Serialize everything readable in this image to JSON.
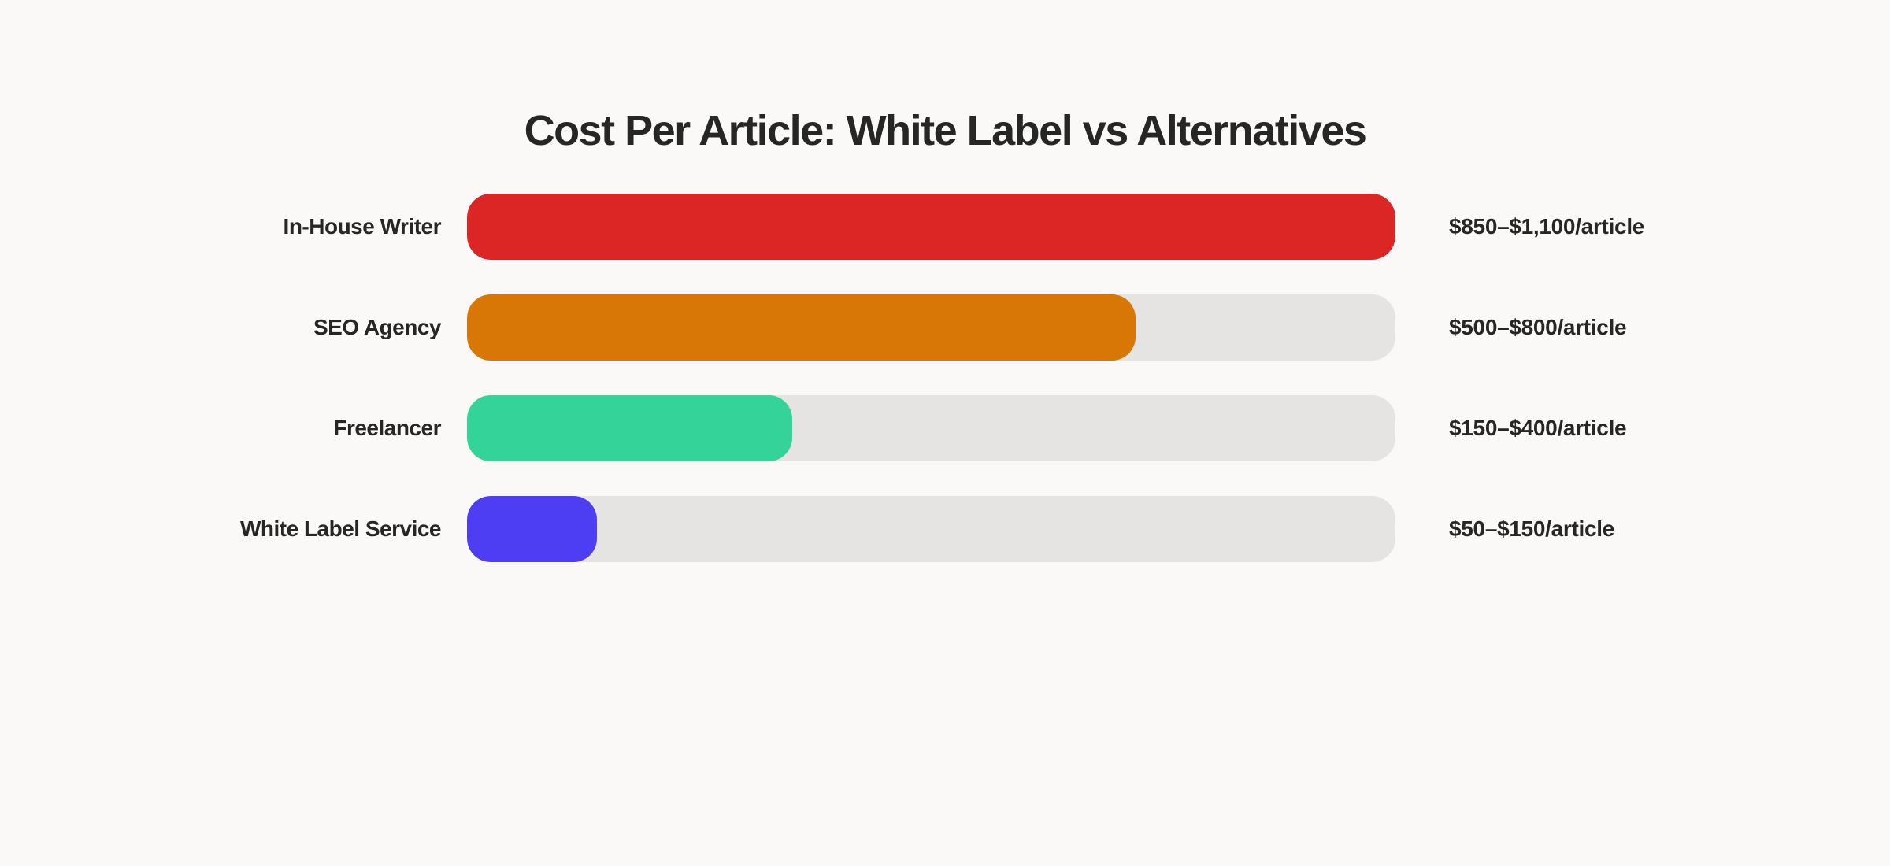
{
  "page": {
    "background_color": "#faf9f7",
    "text_color": "#262624",
    "track_color": "#e5e4e2"
  },
  "title": "Cost Per Article: White Label vs Alternatives",
  "chart_data": {
    "type": "bar",
    "orientation": "horizontal",
    "title": "Cost Per Article: White Label vs Alternatives",
    "xlabel": "",
    "ylabel": "",
    "grid": false,
    "legend": false,
    "track_color": "#e5e4e2",
    "categories": [
      "In-House Writer",
      "SEO Agency",
      "Freelancer",
      "White Label Service"
    ],
    "rows": [
      {
        "label": "In-House Writer",
        "value_label": "$850–$1,100/article",
        "min_cost": 850,
        "max_cost": 1100,
        "bar_percent": 100,
        "color": "#dc2626"
      },
      {
        "label": "SEO Agency",
        "value_label": "$500–$800/article",
        "min_cost": 500,
        "max_cost": 800,
        "bar_percent": 72,
        "color": "#d97706"
      },
      {
        "label": "Freelancer",
        "value_label": "$150–$400/article",
        "min_cost": 150,
        "max_cost": 400,
        "bar_percent": 35,
        "color": "#34d399"
      },
      {
        "label": "White Label Service",
        "value_label": "$50–$150/article",
        "min_cost": 50,
        "max_cost": 150,
        "bar_percent": 14,
        "color": "#4d3df3"
      }
    ]
  }
}
